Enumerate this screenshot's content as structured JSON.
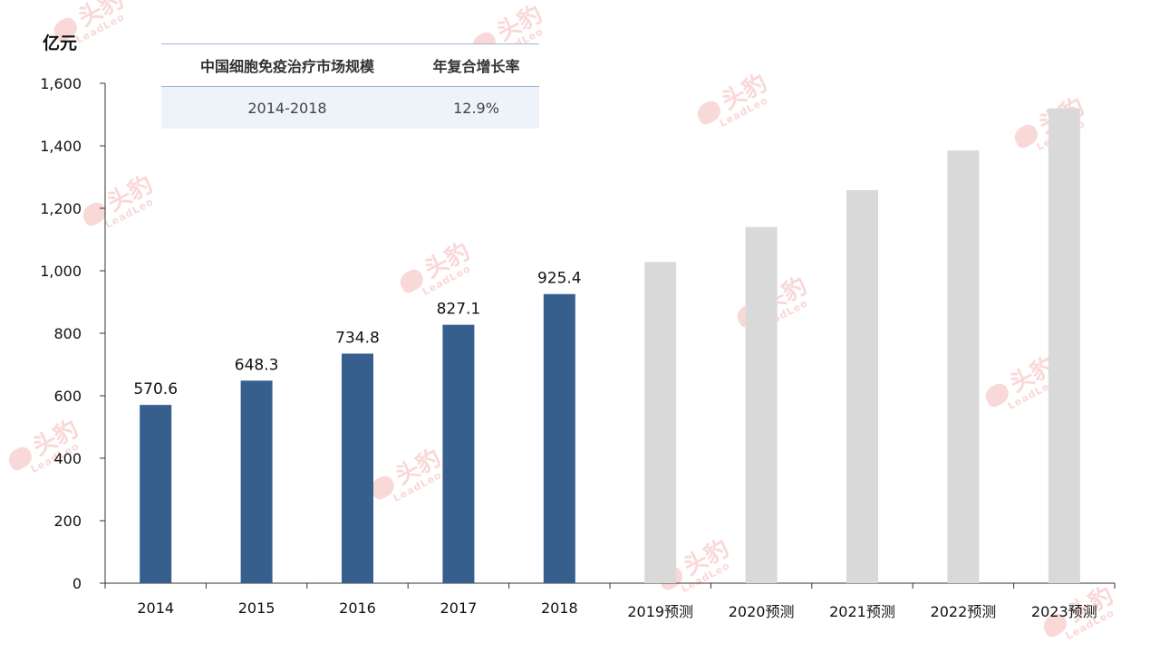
{
  "unit_label": "亿元",
  "table": {
    "headers": [
      "中国细胞免疫治疗市场规模",
      "年复合增长率"
    ],
    "rows": [
      [
        "2014-2018",
        "12.9%"
      ]
    ]
  },
  "watermark": {
    "cn": "头豹",
    "en": "LeadLeo"
  },
  "colors": {
    "actual": "#375f8e",
    "forecast": "#d9d9d9",
    "axis": "#333333",
    "watermark": "#f1a3a3"
  },
  "chart_data": {
    "type": "bar",
    "categories": [
      "2014",
      "2015",
      "2016",
      "2017",
      "2018",
      "2019预测",
      "2020预测",
      "2021预测",
      "2022预测",
      "2023预测"
    ],
    "values": [
      570.6,
      648.3,
      734.8,
      827.1,
      925.4,
      1028,
      1140,
      1258,
      1385,
      1520
    ],
    "value_labels": [
      "570.6",
      "648.3",
      "734.8",
      "827.1",
      "925.4",
      "",
      "",
      "",
      "",
      ""
    ],
    "forecast_from_index": 5,
    "ylim": [
      0,
      1600
    ],
    "yticks": [
      0,
      200,
      400,
      600,
      800,
      1000,
      1200,
      1400,
      1600
    ],
    "ytick_labels": [
      "0",
      "200",
      "400",
      "600",
      "800",
      "1,000",
      "1,200",
      "1,400",
      "1,600"
    ],
    "ylabel": "亿元",
    "xlabel": "",
    "title": "",
    "grid": false
  }
}
